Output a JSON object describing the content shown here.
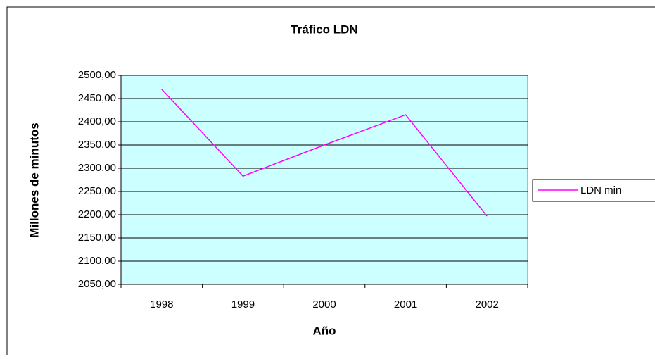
{
  "chart_data": {
    "type": "line",
    "title": "Tráfico LDN",
    "x_label": "Año",
    "y_label": "Millones de minutos",
    "categories": [
      "1998",
      "1999",
      "2000",
      "2001",
      "2002"
    ],
    "series": [
      {
        "name": "LDN min",
        "color": "#ff00ff",
        "values": [
          2470,
          2283,
          2350,
          2415,
          2197
        ]
      }
    ],
    "ylim": [
      2050,
      2500
    ],
    "yticks": [
      {
        "value": 2050,
        "label": "2050,00"
      },
      {
        "value": 2100,
        "label": "2100,00"
      },
      {
        "value": 2150,
        "label": "2150,00"
      },
      {
        "value": 2200,
        "label": "2200,00"
      },
      {
        "value": 2250,
        "label": "2250,00"
      },
      {
        "value": 2300,
        "label": "2300,00"
      },
      {
        "value": 2350,
        "label": "2350,00"
      },
      {
        "value": 2400,
        "label": "2400,00"
      },
      {
        "value": 2450,
        "label": "2450,00"
      },
      {
        "value": 2500,
        "label": "2500,00"
      }
    ],
    "grid": true,
    "legend": "right",
    "plot_background": "#ccffff"
  }
}
